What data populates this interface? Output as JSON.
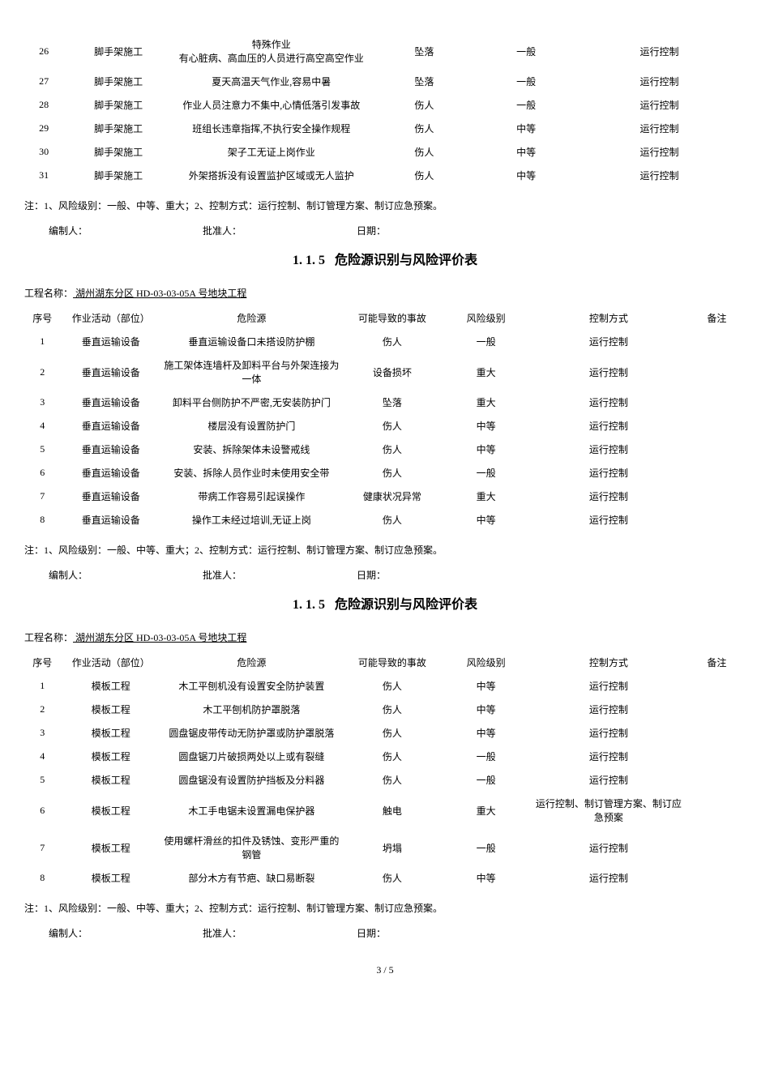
{
  "footnote": "注：1、风险级别：一般、中等、重大；2、控制方式：运行控制、制订管理方案、制订应急预案。",
  "sig": {
    "prep": "编制人：",
    "appr": "批准人：",
    "date": "日期："
  },
  "sectionNumber": "1. 1. 5",
  "sectionTitle": "危险源识别与风险评价表",
  "projLabel": "工程名称：",
  "projName": "  湖州湖东分区 HD-03-03-05A 号地块工程  ",
  "headers": {
    "seq": "序号",
    "activity": "作业活动（部位）",
    "hazard": "危险源",
    "accident": "可能导致的事故",
    "risk": "风险级别",
    "control": "控制方式",
    "note": "备注"
  },
  "table1": [
    {
      "seq": "26",
      "activity": "脚手架施工",
      "hazard": "特殊作业\n有心脏病、高血压的人员进行高空高空作业",
      "accident": "坠落",
      "risk": "一般",
      "control": "运行控制"
    },
    {
      "seq": "27",
      "activity": "脚手架施工",
      "hazard": "夏天高温天气作业,容易中暑",
      "accident": "坠落",
      "risk": "一般",
      "control": "运行控制"
    },
    {
      "seq": "28",
      "activity": "脚手架施工",
      "hazard": "作业人员注意力不集中,心情低落引发事故",
      "accident": "伤人",
      "risk": "一般",
      "control": "运行控制"
    },
    {
      "seq": "29",
      "activity": "脚手架施工",
      "hazard": "班组长违章指挥,不执行安全操作规程",
      "accident": "伤人",
      "risk": "中等",
      "control": "运行控制"
    },
    {
      "seq": "30",
      "activity": "脚手架施工",
      "hazard": "架子工无证上岗作业",
      "accident": "伤人",
      "risk": "中等",
      "control": "运行控制"
    },
    {
      "seq": "31",
      "activity": "脚手架施工",
      "hazard": "外架搭拆没有设置监护区域或无人监护",
      "accident": "伤人",
      "risk": "中等",
      "control": "运行控制"
    }
  ],
  "table2": [
    {
      "seq": "1",
      "activity": "垂直运输设备",
      "hazard": "垂直运输设备口未搭设防护棚",
      "accident": "伤人",
      "risk": "一般",
      "control": "运行控制"
    },
    {
      "seq": "2",
      "activity": "垂直运输设备",
      "hazard": "施工架体连墙杆及卸料平台与外架连接为一体",
      "accident": "设备损坏",
      "risk": "重大",
      "control": "运行控制"
    },
    {
      "seq": "3",
      "activity": "垂直运输设备",
      "hazard": "卸料平台侧防护不严密,无安装防护门",
      "accident": "坠落",
      "risk": "重大",
      "control": "运行控制"
    },
    {
      "seq": "4",
      "activity": "垂直运输设备",
      "hazard": "楼层没有设置防护门",
      "accident": "伤人",
      "risk": "中等",
      "control": "运行控制"
    },
    {
      "seq": "5",
      "activity": "垂直运输设备",
      "hazard": "安装、拆除架体未设警戒线",
      "accident": "伤人",
      "risk": "中等",
      "control": "运行控制"
    },
    {
      "seq": "6",
      "activity": "垂直运输设备",
      "hazard": "安装、拆除人员作业时未使用安全带",
      "accident": "伤人",
      "risk": "一般",
      "control": "运行控制"
    },
    {
      "seq": "7",
      "activity": "垂直运输设备",
      "hazard": "带病工作容易引起误操作",
      "accident": "健康状况异常",
      "risk": "重大",
      "control": "运行控制"
    },
    {
      "seq": "8",
      "activity": "垂直运输设备",
      "hazard": "操作工未经过培训,无证上岗",
      "accident": "伤人",
      "risk": "中等",
      "control": "运行控制"
    }
  ],
  "table3": [
    {
      "seq": "1",
      "activity": "模板工程",
      "hazard": "木工平刨机没有设置安全防护装置",
      "accident": "伤人",
      "risk": "中等",
      "control": "运行控制"
    },
    {
      "seq": "2",
      "activity": "模板工程",
      "hazard": "木工平刨机防护罩脱落",
      "accident": "伤人",
      "risk": "中等",
      "control": "运行控制"
    },
    {
      "seq": "3",
      "activity": "模板工程",
      "hazard": "圆盘锯皮带传动无防护罩或防护罩脱落",
      "accident": "伤人",
      "risk": "中等",
      "control": "运行控制"
    },
    {
      "seq": "4",
      "activity": "模板工程",
      "hazard": "圆盘锯刀片破损两处以上或有裂缝",
      "accident": "伤人",
      "risk": "一般",
      "control": "运行控制"
    },
    {
      "seq": "5",
      "activity": "模板工程",
      "hazard": "圆盘锯没有设置防护挡板及分料器",
      "accident": "伤人",
      "risk": "一般",
      "control": "运行控制"
    },
    {
      "seq": "6",
      "activity": "模板工程",
      "hazard": "木工手电锯未设置漏电保护器",
      "accident": "触电",
      "risk": "重大",
      "control": "运行控制、制订管理方案、制订应急预案"
    },
    {
      "seq": "7",
      "activity": "模板工程",
      "hazard": "使用螺杆滑丝的扣件及锈蚀、变形严重的钢管",
      "accident": "坍塌",
      "risk": "一般",
      "control": "运行控制"
    },
    {
      "seq": "8",
      "activity": "模板工程",
      "hazard": "部分木方有节疤、缺口易断裂",
      "accident": "伤人",
      "risk": "中等",
      "control": "运行控制"
    }
  ],
  "pageNum": "3 / 5"
}
